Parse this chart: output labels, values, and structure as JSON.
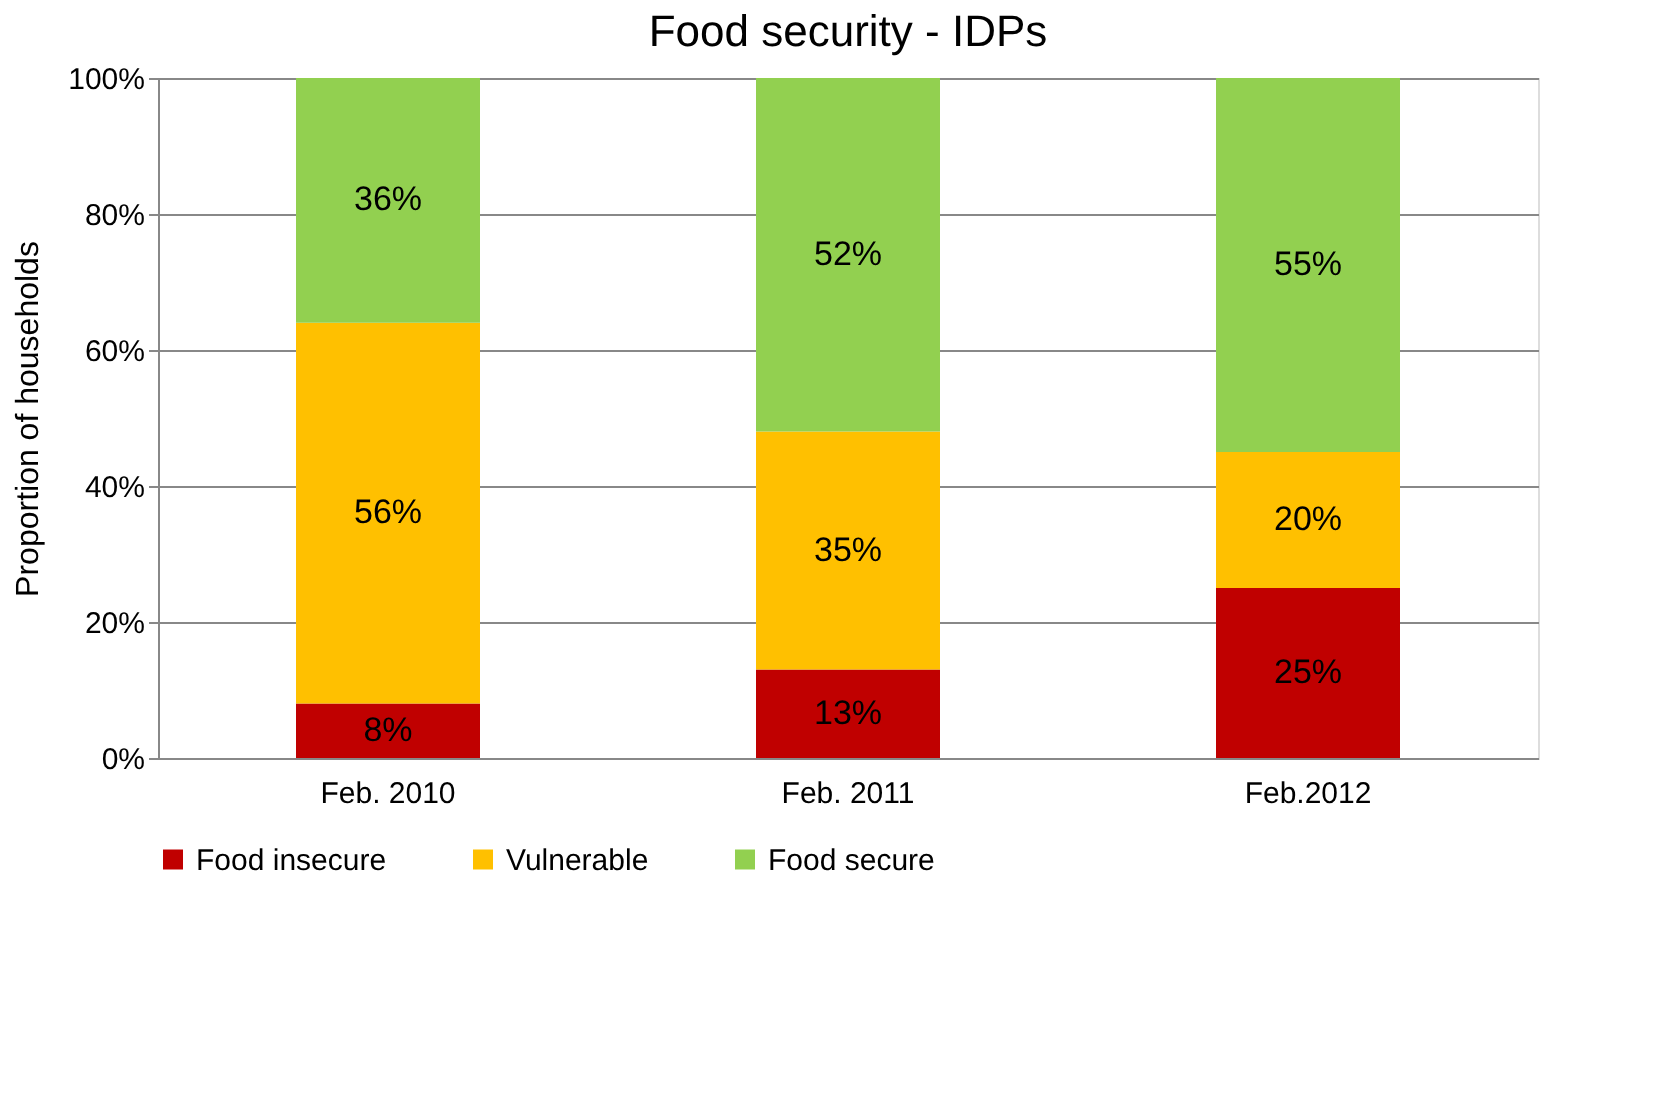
{
  "chart_data": {
    "type": "bar",
    "title": "Food security - IDPs",
    "ylabel": "Proportion of households",
    "categories": [
      "Feb. 2010",
      "Feb. 2011",
      "Feb.2012"
    ],
    "stacked": true,
    "series": [
      {
        "name": "Food insecure",
        "color": "#c00000",
        "values": [
          8,
          13,
          25
        ],
        "value_labels": [
          "8%",
          "13%",
          "25%"
        ]
      },
      {
        "name": "Vulnerable",
        "color": "#ffc000",
        "values": [
          56,
          35,
          20
        ],
        "value_labels": [
          "56%",
          "35%",
          "20%"
        ]
      },
      {
        "name": "Food secure",
        "color": "#92d050",
        "values": [
          36,
          52,
          55
        ],
        "value_labels": [
          "36%",
          "52%",
          "55%"
        ]
      }
    ],
    "ylim": [
      0,
      100
    ],
    "yticks": [
      {
        "value": 0,
        "label": "0%"
      },
      {
        "value": 20,
        "label": "20%"
      },
      {
        "value": 40,
        "label": "40%"
      },
      {
        "value": 60,
        "label": "60%"
      },
      {
        "value": 80,
        "label": "80%"
      },
      {
        "value": 100,
        "label": "100%"
      }
    ],
    "grid": "y",
    "legend": "bottom"
  }
}
